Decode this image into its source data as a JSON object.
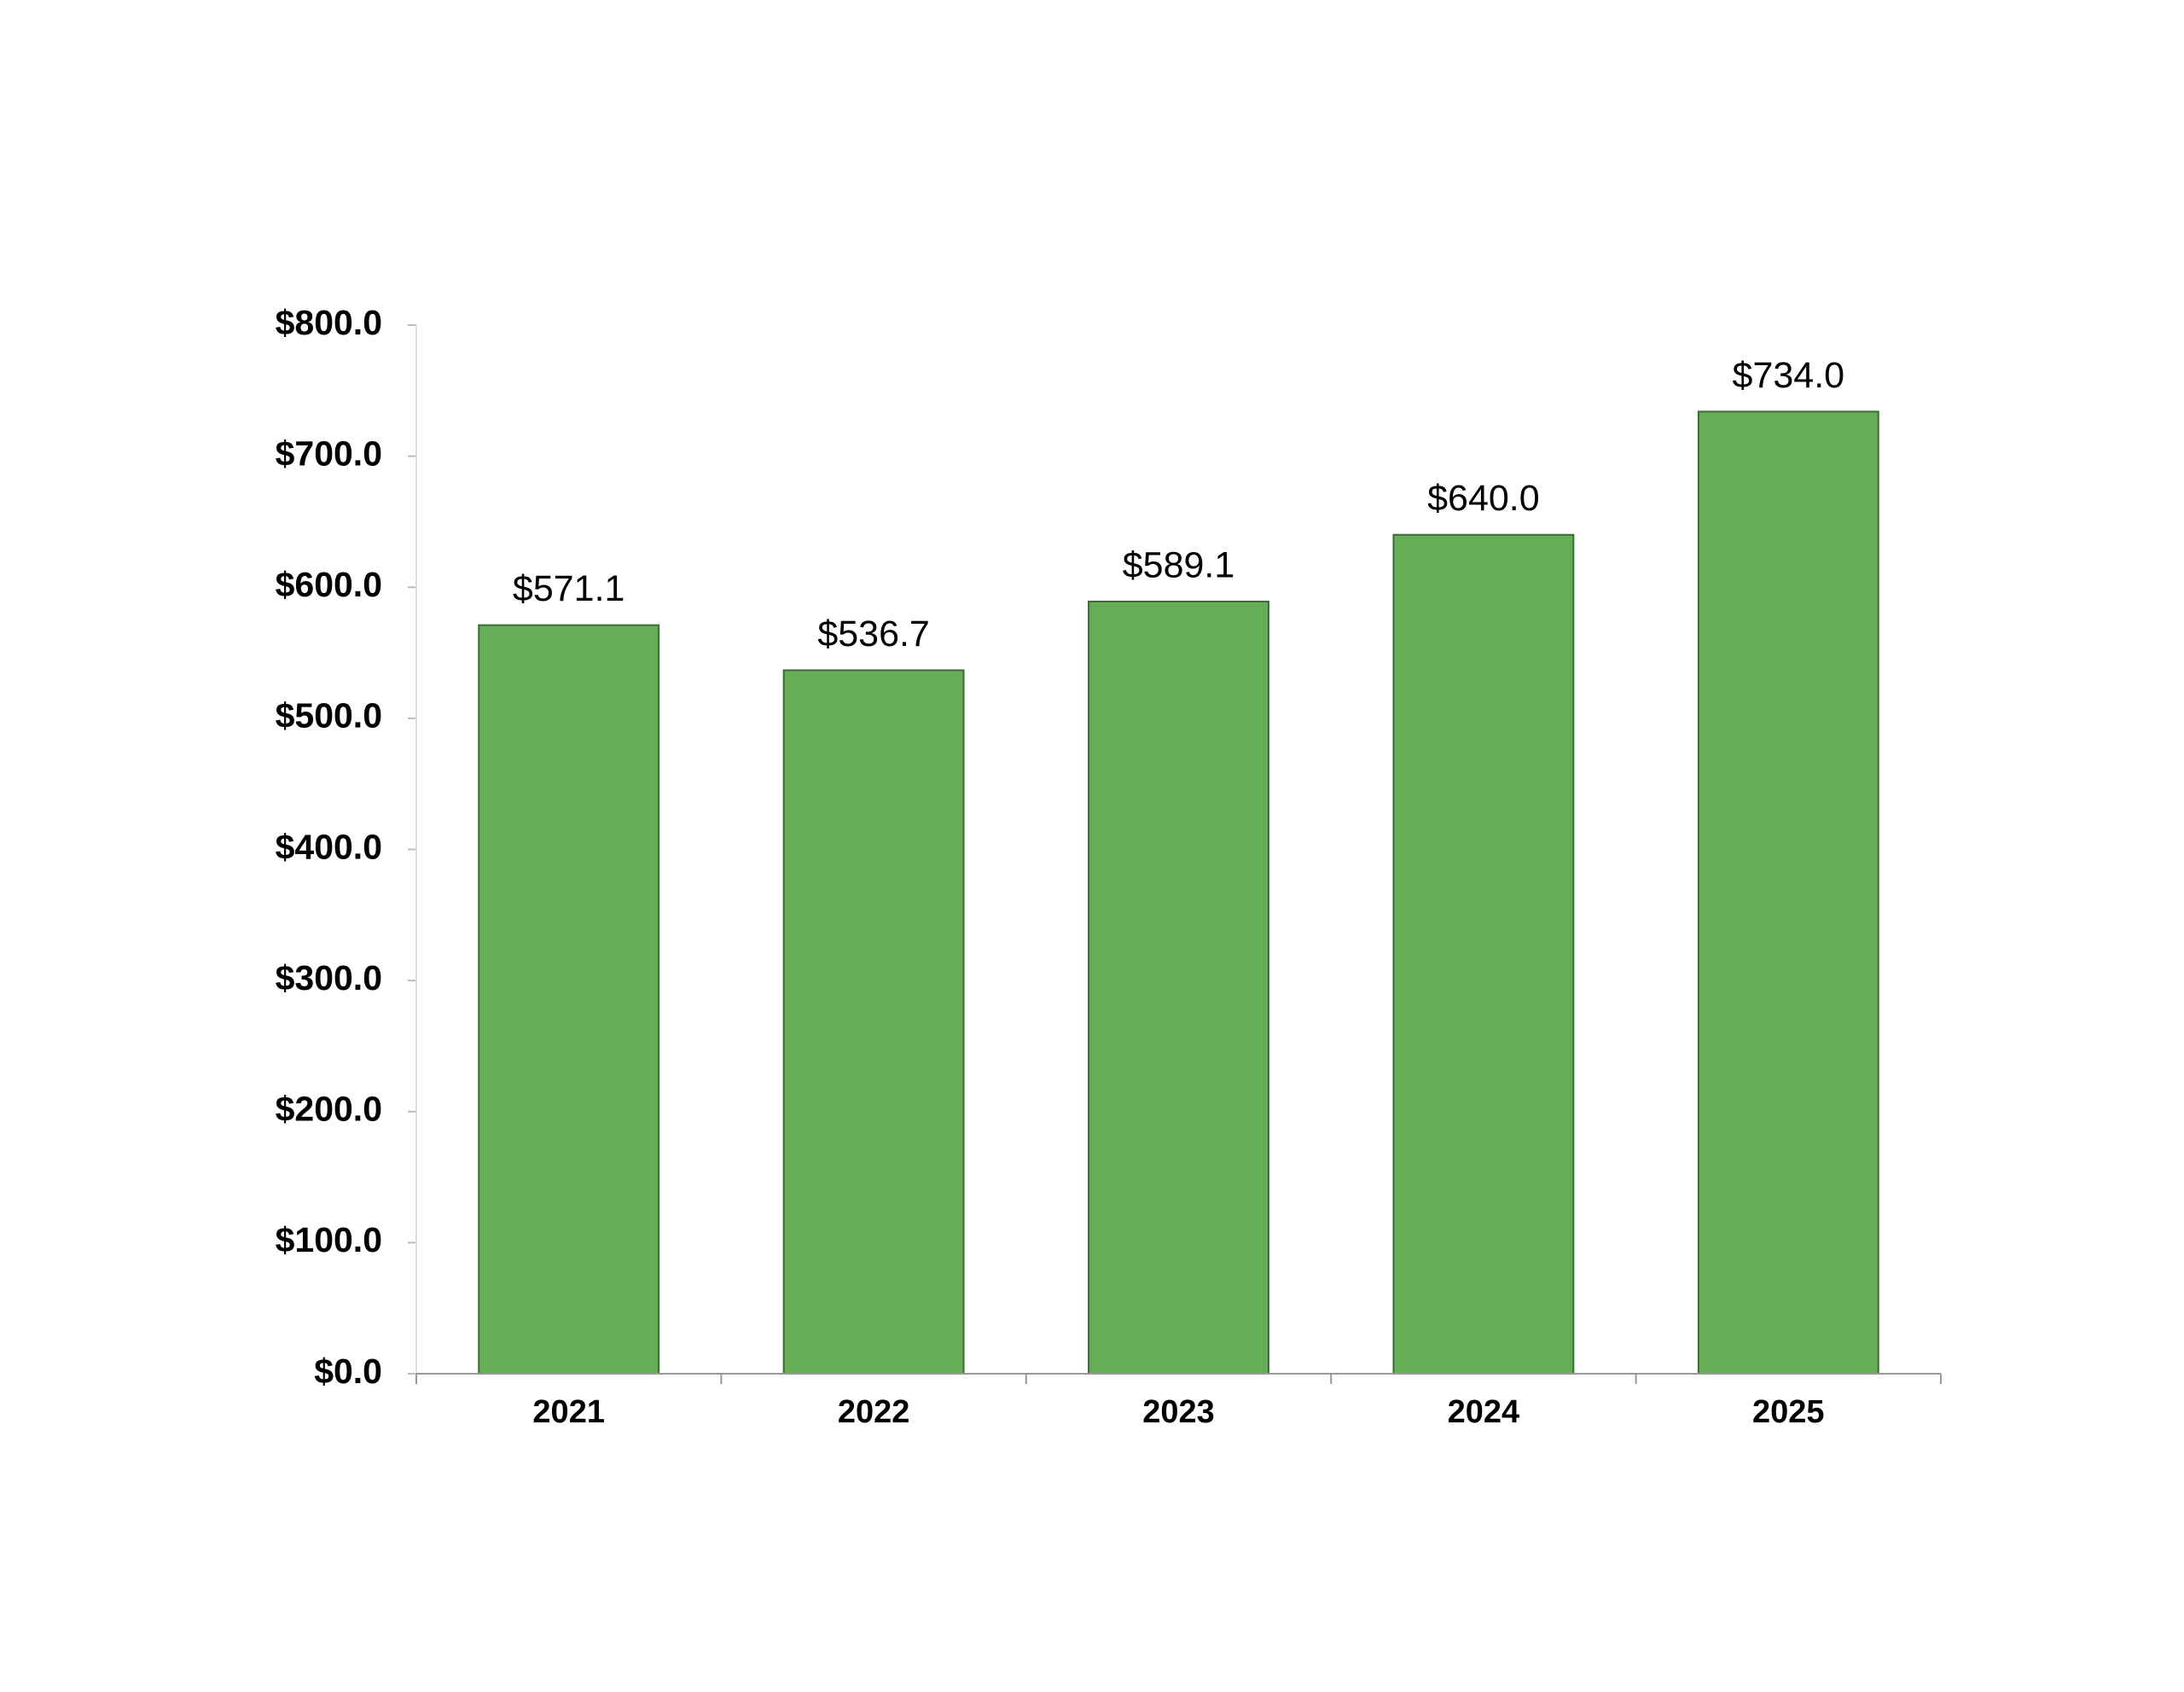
{
  "chart_data": {
    "type": "bar",
    "categories": [
      "2021",
      "2022",
      "2023",
      "2024",
      "2025"
    ],
    "values": [
      571.1,
      536.7,
      589.1,
      640.0,
      734.0
    ],
    "value_labels": [
      "$571.1",
      "$536.7",
      "$589.1",
      "$640.0",
      "$734.0"
    ],
    "color": "#66ad58",
    "ylim": [
      0,
      800
    ],
    "yticks": [
      {
        "value": 0,
        "label": "$0.0"
      },
      {
        "value": 100,
        "label": "$100.0"
      },
      {
        "value": 200,
        "label": "$200.0"
      },
      {
        "value": 300,
        "label": "$300.0"
      },
      {
        "value": 400,
        "label": "$400.0"
      },
      {
        "value": 500,
        "label": "$500.0"
      },
      {
        "value": 600,
        "label": "$600.0"
      },
      {
        "value": 700,
        "label": "$700.0"
      },
      {
        "value": 800,
        "label": "$800.0"
      }
    ],
    "grid": false
  }
}
